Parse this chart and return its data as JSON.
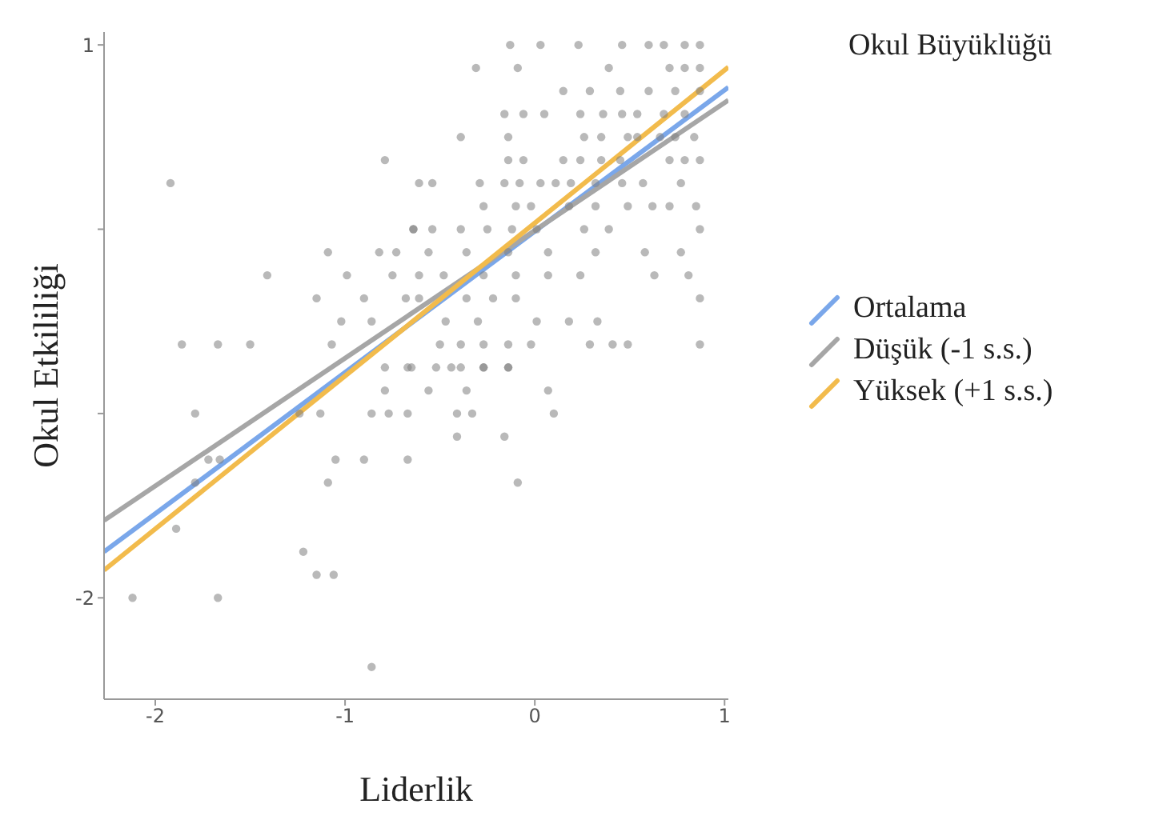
{
  "chart_data": {
    "type": "scatter",
    "xlabel": "Liderlik",
    "ylabel": "Okul Etkililiği",
    "legend_title": "Okul Büyüklüğü",
    "legend": "right",
    "xlim": [
      -2.27,
      1.02
    ],
    "xticks": [
      -2,
      -1,
      0,
      1
    ],
    "ylim": [
      -2.55,
      1.07
    ],
    "yticks": [
      1,
      {
        "value": 0,
        "label": null
      },
      {
        "value": -1,
        "label": null
      },
      -2
    ],
    "series": [
      {
        "color": "#7f7f7f",
        "marker": "circle",
        "x": [
          -0.13,
          0.03,
          0.23,
          0.46,
          0.6,
          0.68,
          0.79,
          0.87,
          -0.31,
          -0.09,
          0.39,
          0.71,
          0.79,
          0.87,
          0.15,
          0.29,
          0.45,
          0.6,
          0.74,
          0.87,
          -0.16,
          -0.06,
          0.05,
          0.24,
          0.36,
          0.46,
          0.54,
          0.68,
          0.79,
          -0.39,
          -0.14,
          0.26,
          0.35,
          0.49,
          0.54,
          0.66,
          0.74,
          0.84,
          -0.79,
          -1.92,
          -0.14,
          -0.06,
          0.15,
          0.24,
          0.35,
          0.45,
          0.71,
          0.79,
          0.87,
          -0.61,
          -0.54,
          -0.29,
          -0.16,
          -0.08,
          0.03,
          0.11,
          0.19,
          0.32,
          0.46,
          0.57,
          0.77,
          -0.64,
          -0.27,
          -0.1,
          -0.02,
          0.18,
          0.32,
          0.49,
          0.62,
          0.71,
          0.85,
          -0.64,
          -0.54,
          -0.39,
          -0.25,
          -0.12,
          0.01,
          0.26,
          0.39,
          0.87,
          -1.09,
          -0.82,
          -0.73,
          -0.56,
          -0.36,
          -0.14,
          0.07,
          0.32,
          0.58,
          0.77,
          -1.41,
          -0.99,
          -0.75,
          -0.61,
          -0.48,
          -0.27,
          -0.1,
          0.07,
          0.24,
          0.63,
          0.81,
          -1.15,
          -0.9,
          -0.68,
          -0.61,
          -0.36,
          -0.22,
          -0.1,
          0.87,
          -1.02,
          -0.86,
          -0.47,
          -0.3,
          0.01,
          0.18,
          0.33,
          -1.86,
          -1.67,
          -1.5,
          -1.07,
          -0.5,
          -0.39,
          -0.27,
          -0.14,
          -0.02,
          0.29,
          0.41,
          0.49,
          0.87,
          -0.44,
          -0.27,
          -0.14,
          -0.79,
          -0.65,
          -0.67,
          -0.52,
          -0.39,
          -0.27,
          -0.14,
          -0.79,
          -0.56,
          -0.36,
          0.07,
          -1.79,
          -1.24,
          -1.13,
          -0.86,
          -0.77,
          -0.67,
          -0.41,
          -0.33,
          0.1,
          -0.41,
          -0.16,
          -1.72,
          -1.66,
          -1.05,
          -0.9,
          -0.67,
          -1.79,
          -1.09,
          -0.09,
          -1.89,
          -1.22,
          -1.15,
          -1.06,
          -2.12,
          -1.67,
          -0.86
        ],
        "values": [
          1,
          1,
          1,
          1,
          1,
          1,
          1,
          1,
          0.875,
          0.875,
          0.875,
          0.875,
          0.875,
          0.875,
          0.75,
          0.75,
          0.75,
          0.75,
          0.75,
          0.75,
          0.625,
          0.625,
          0.625,
          0.625,
          0.625,
          0.625,
          0.625,
          0.625,
          0.625,
          0.5,
          0.5,
          0.5,
          0.5,
          0.5,
          0.5,
          0.5,
          0.5,
          0.5,
          0.375,
          0.25,
          0.375,
          0.375,
          0.375,
          0.375,
          0.375,
          0.375,
          0.375,
          0.375,
          0.375,
          0.25,
          0.25,
          0.25,
          0.25,
          0.25,
          0.25,
          0.25,
          0.25,
          0.25,
          0.25,
          0.25,
          0.25,
          0,
          0.125,
          0.125,
          0.125,
          0.125,
          0.125,
          0.125,
          0.125,
          0.125,
          0.125,
          0,
          0,
          0,
          0,
          0,
          0,
          0,
          0,
          0,
          -0.125,
          -0.125,
          -0.125,
          -0.125,
          -0.125,
          -0.125,
          -0.125,
          -0.125,
          -0.125,
          -0.125,
          -0.25,
          -0.25,
          -0.25,
          -0.25,
          -0.25,
          -0.25,
          -0.25,
          -0.25,
          -0.25,
          -0.25,
          -0.25,
          -0.375,
          -0.375,
          -0.375,
          -0.375,
          -0.375,
          -0.375,
          -0.375,
          -0.375,
          -0.5,
          -0.5,
          -0.5,
          -0.5,
          -0.5,
          -0.5,
          -0.5,
          -0.625,
          -0.625,
          -0.625,
          -0.625,
          -0.625,
          -0.625,
          -0.625,
          -0.625,
          -0.625,
          -0.625,
          -0.625,
          -0.625,
          -0.625,
          -0.75,
          -0.75,
          -0.75,
          -0.75,
          -0.75,
          -0.75,
          -0.75,
          -0.75,
          -0.75,
          -0.75,
          -0.875,
          -0.875,
          -0.875,
          -0.875,
          -1,
          -1,
          -1,
          -1,
          -1,
          -1,
          -1,
          -1,
          -1,
          -1.125,
          -1.125,
          -1.25,
          -1.25,
          -1.25,
          -1.25,
          -1.25,
          -1.375,
          -1.375,
          -1.375,
          -1.625,
          -1.75,
          -1.875,
          -1.875,
          -2,
          -2,
          -2.375
        ]
      },
      {
        "type": "line",
        "name": "Ortalama",
        "color": "#7aa7ea",
        "x": [
          -2.27,
          1.02
        ],
        "values": [
          -1.75,
          0.77
        ]
      },
      {
        "type": "line",
        "name": "Düşük (-1 s.s.)",
        "color": "#a6a6a6",
        "x": [
          -2.27,
          1.02
        ],
        "values": [
          -1.58,
          0.7
        ]
      },
      {
        "type": "line",
        "name": "Yüksek (+1 s.s.)",
        "color": "#f2bb4c",
        "x": [
          -2.27,
          1.02
        ],
        "values": [
          -1.85,
          0.88
        ]
      }
    ]
  }
}
